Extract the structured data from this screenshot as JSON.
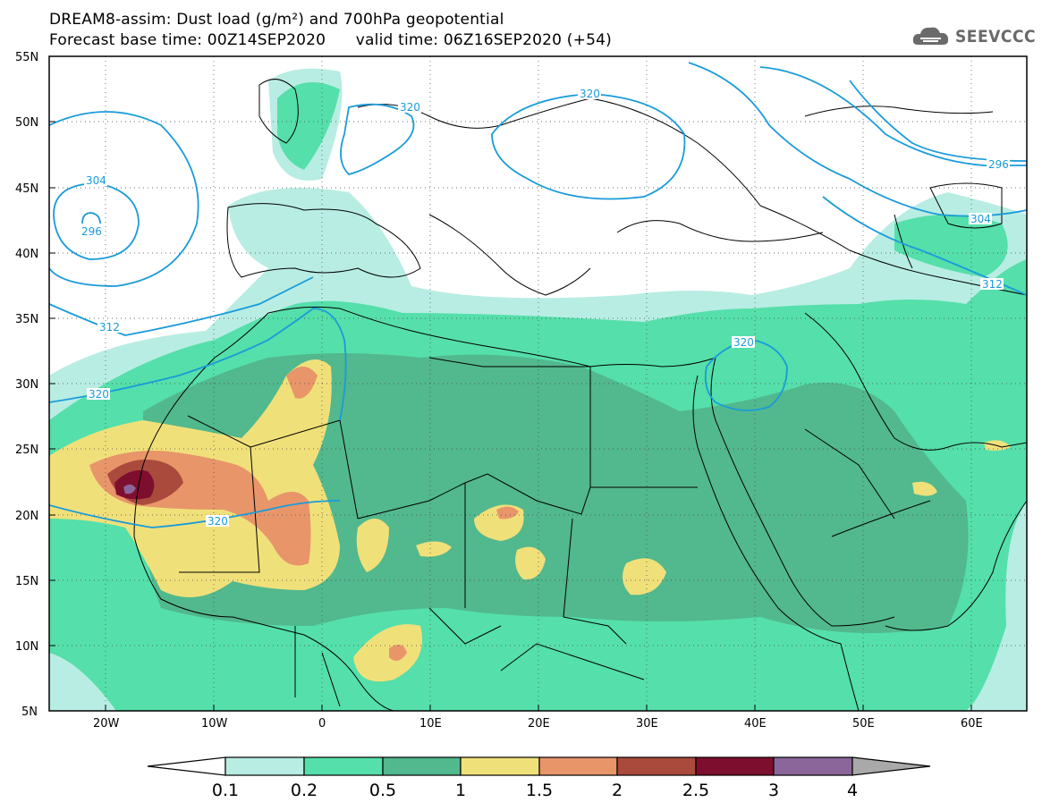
{
  "title": {
    "line1": "DREAM8-assim: Dust load (g/m²) and 700hPa geopotential",
    "line2": "Forecast base time: 00Z14SEP2020      valid time: 06Z16SEP2020 (+54)"
  },
  "logo": {
    "text": "SEEVCCC",
    "icon": "cloud-logo-icon"
  },
  "map": {
    "lat_labels": [
      "55N",
      "50N",
      "45N",
      "40N",
      "35N",
      "30N",
      "25N",
      "20N",
      "15N",
      "10N",
      "5N"
    ],
    "lon_labels": [
      "20W",
      "10W",
      "0",
      "10E",
      "20E",
      "30E",
      "40E",
      "50E",
      "60E"
    ],
    "lat_range": [
      5,
      55
    ],
    "lon_range": [
      -25,
      65
    ],
    "grid": "dotted",
    "contour_labels": [
      "320",
      "320",
      "296",
      "304",
      "296",
      "304",
      "312",
      "312",
      "320",
      "320",
      "320"
    ]
  },
  "colorbar": {
    "labels": [
      "0.1",
      "0.2",
      "0.5",
      "1",
      "1.5",
      "2",
      "2.5",
      "3",
      "4"
    ],
    "colors": [
      "#b8ede3",
      "#55dfaa",
      "#52b88d",
      "#f0e07a",
      "#e8956a",
      "#aa4a3c",
      "#7e0e2e",
      "#8a669a"
    ],
    "under_color": "#ffffff",
    "over_color": "#a9a9a9"
  },
  "colors": {
    "contour": "#1a9bd9",
    "land_border": "#000000",
    "frame": "#000000"
  }
}
